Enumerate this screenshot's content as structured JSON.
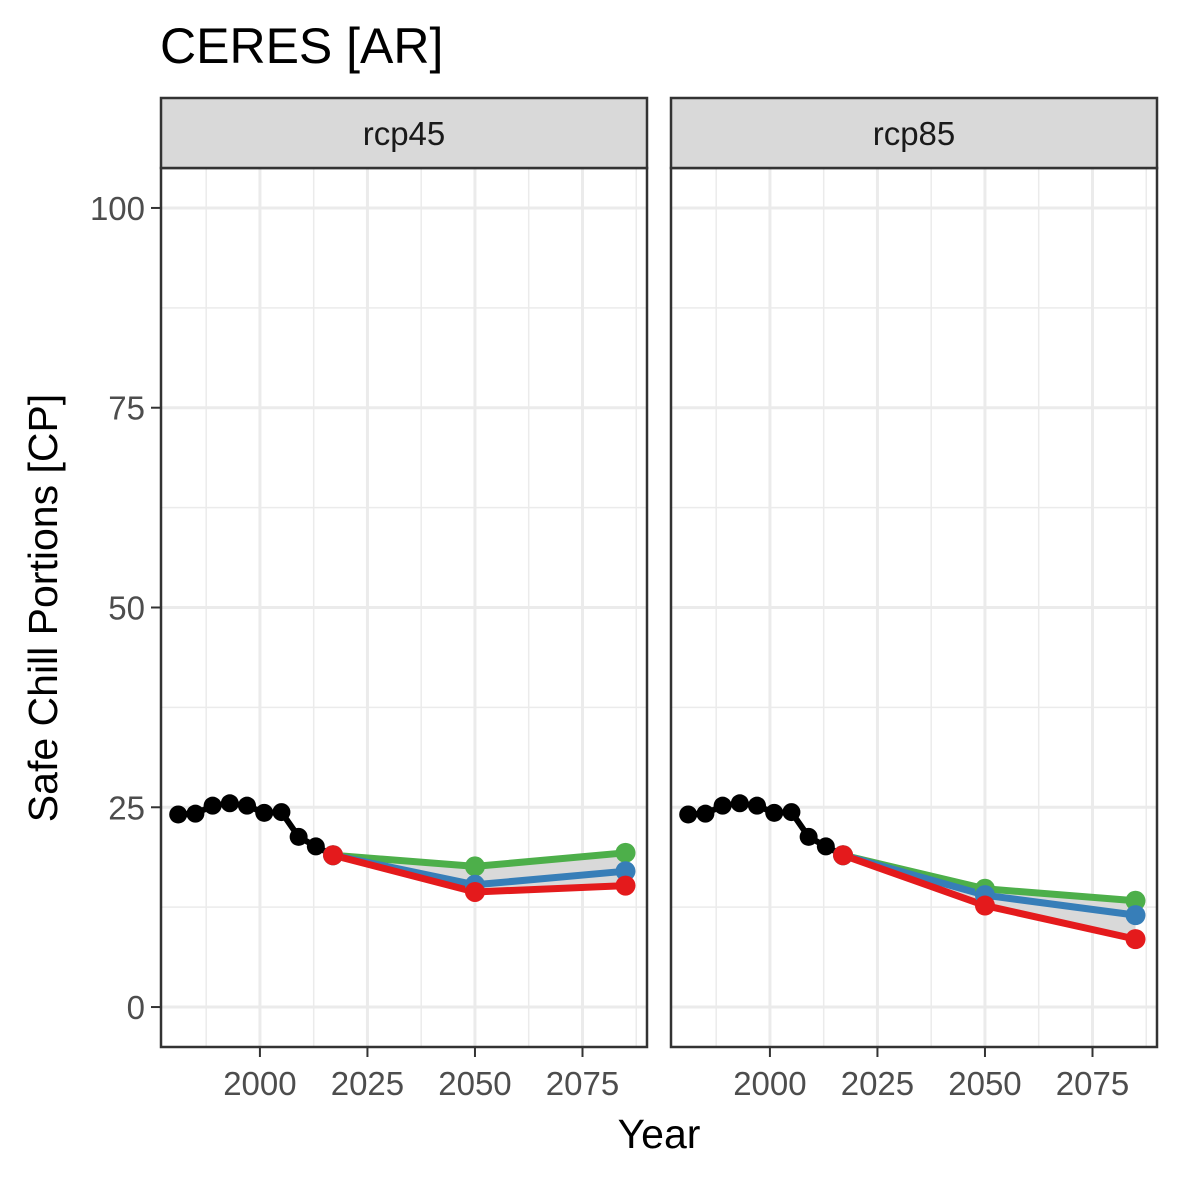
{
  "chart_data": {
    "type": "line",
    "title": "CERES [AR]",
    "xlabel": "Year",
    "ylabel": "Safe Chill Portions [CP]",
    "xlim": [
      1977,
      2090
    ],
    "ylim": [
      -5,
      105
    ],
    "x_ticks": [
      2000,
      2025,
      2050,
      2075
    ],
    "y_ticks": [
      0,
      25,
      50,
      75,
      100
    ],
    "grid": true,
    "legend": "none",
    "colors": {
      "historic": "#000000",
      "high": "#4DAF4A",
      "median": "#377EB8",
      "low": "#E41A1C",
      "ribbon": "#D9D9D9"
    },
    "panels": [
      {
        "label": "rcp45",
        "historic": {
          "x": [
            1981,
            1985,
            1989,
            1993,
            1997,
            2001,
            2005,
            2009,
            2013,
            2017
          ],
          "y": [
            24.1,
            24.2,
            25.2,
            25.5,
            25.2,
            24.3,
            24.4,
            21.3,
            20.1,
            19.0
          ]
        },
        "series": [
          {
            "key": "high",
            "x": [
              2017,
              2050,
              2085
            ],
            "y": [
              19.0,
              17.6,
              19.3
            ]
          },
          {
            "key": "median",
            "x": [
              2017,
              2050,
              2085
            ],
            "y": [
              19.0,
              15.3,
              17.0
            ]
          },
          {
            "key": "low",
            "x": [
              2017,
              2050,
              2085
            ],
            "y": [
              19.0,
              14.4,
              15.2
            ]
          }
        ]
      },
      {
        "label": "rcp85",
        "historic": {
          "x": [
            1981,
            1985,
            1989,
            1993,
            1997,
            2001,
            2005,
            2009,
            2013,
            2017
          ],
          "y": [
            24.1,
            24.2,
            25.2,
            25.5,
            25.2,
            24.3,
            24.4,
            21.3,
            20.1,
            19.0
          ]
        },
        "series": [
          {
            "key": "high",
            "x": [
              2017,
              2050,
              2085
            ],
            "y": [
              19.0,
              14.8,
              13.3
            ]
          },
          {
            "key": "median",
            "x": [
              2017,
              2050,
              2085
            ],
            "y": [
              19.0,
              14.0,
              11.5
            ]
          },
          {
            "key": "low",
            "x": [
              2017,
              2050,
              2085
            ],
            "y": [
              19.0,
              12.7,
              8.5
            ]
          }
        ]
      }
    ]
  }
}
